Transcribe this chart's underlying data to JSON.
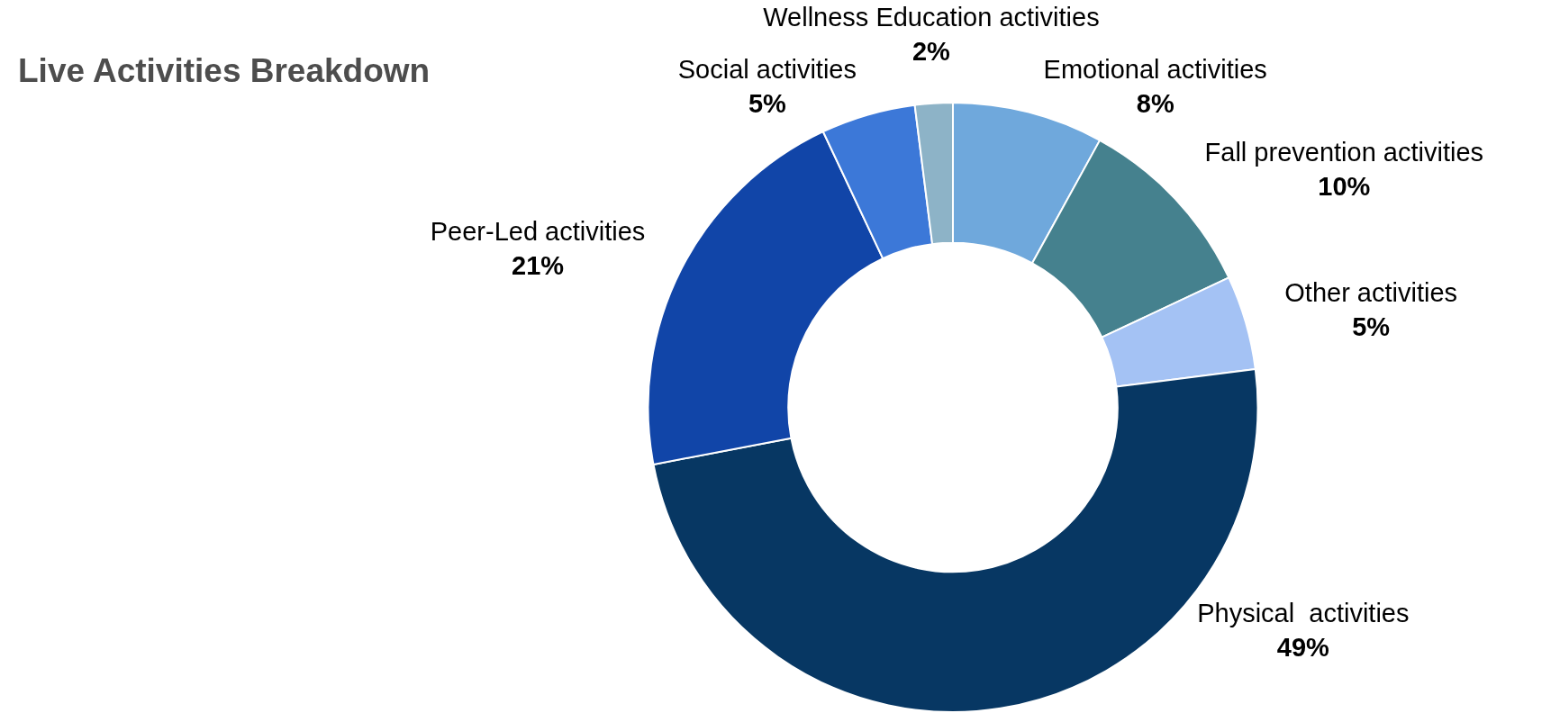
{
  "chart_data": {
    "type": "donut",
    "title": "Live Activities Breakdown",
    "categories": [
      "Emotional activities",
      "Fall prevention activities",
      "Other activities",
      "Physical  activities",
      "Peer-Led activities",
      "Social activities",
      "Wellness Education activities"
    ],
    "values": [
      8,
      10,
      5,
      49,
      21,
      5,
      2
    ],
    "value_labels": [
      "8%",
      "10%",
      "5%",
      "49%",
      "21%",
      "5%",
      "2%"
    ],
    "colors": [
      "#6fa8dc",
      "#45818e",
      "#a4c2f4",
      "#073763",
      "#1145a8",
      "#3c78d8",
      "#8db3c7"
    ],
    "legend": false
  }
}
